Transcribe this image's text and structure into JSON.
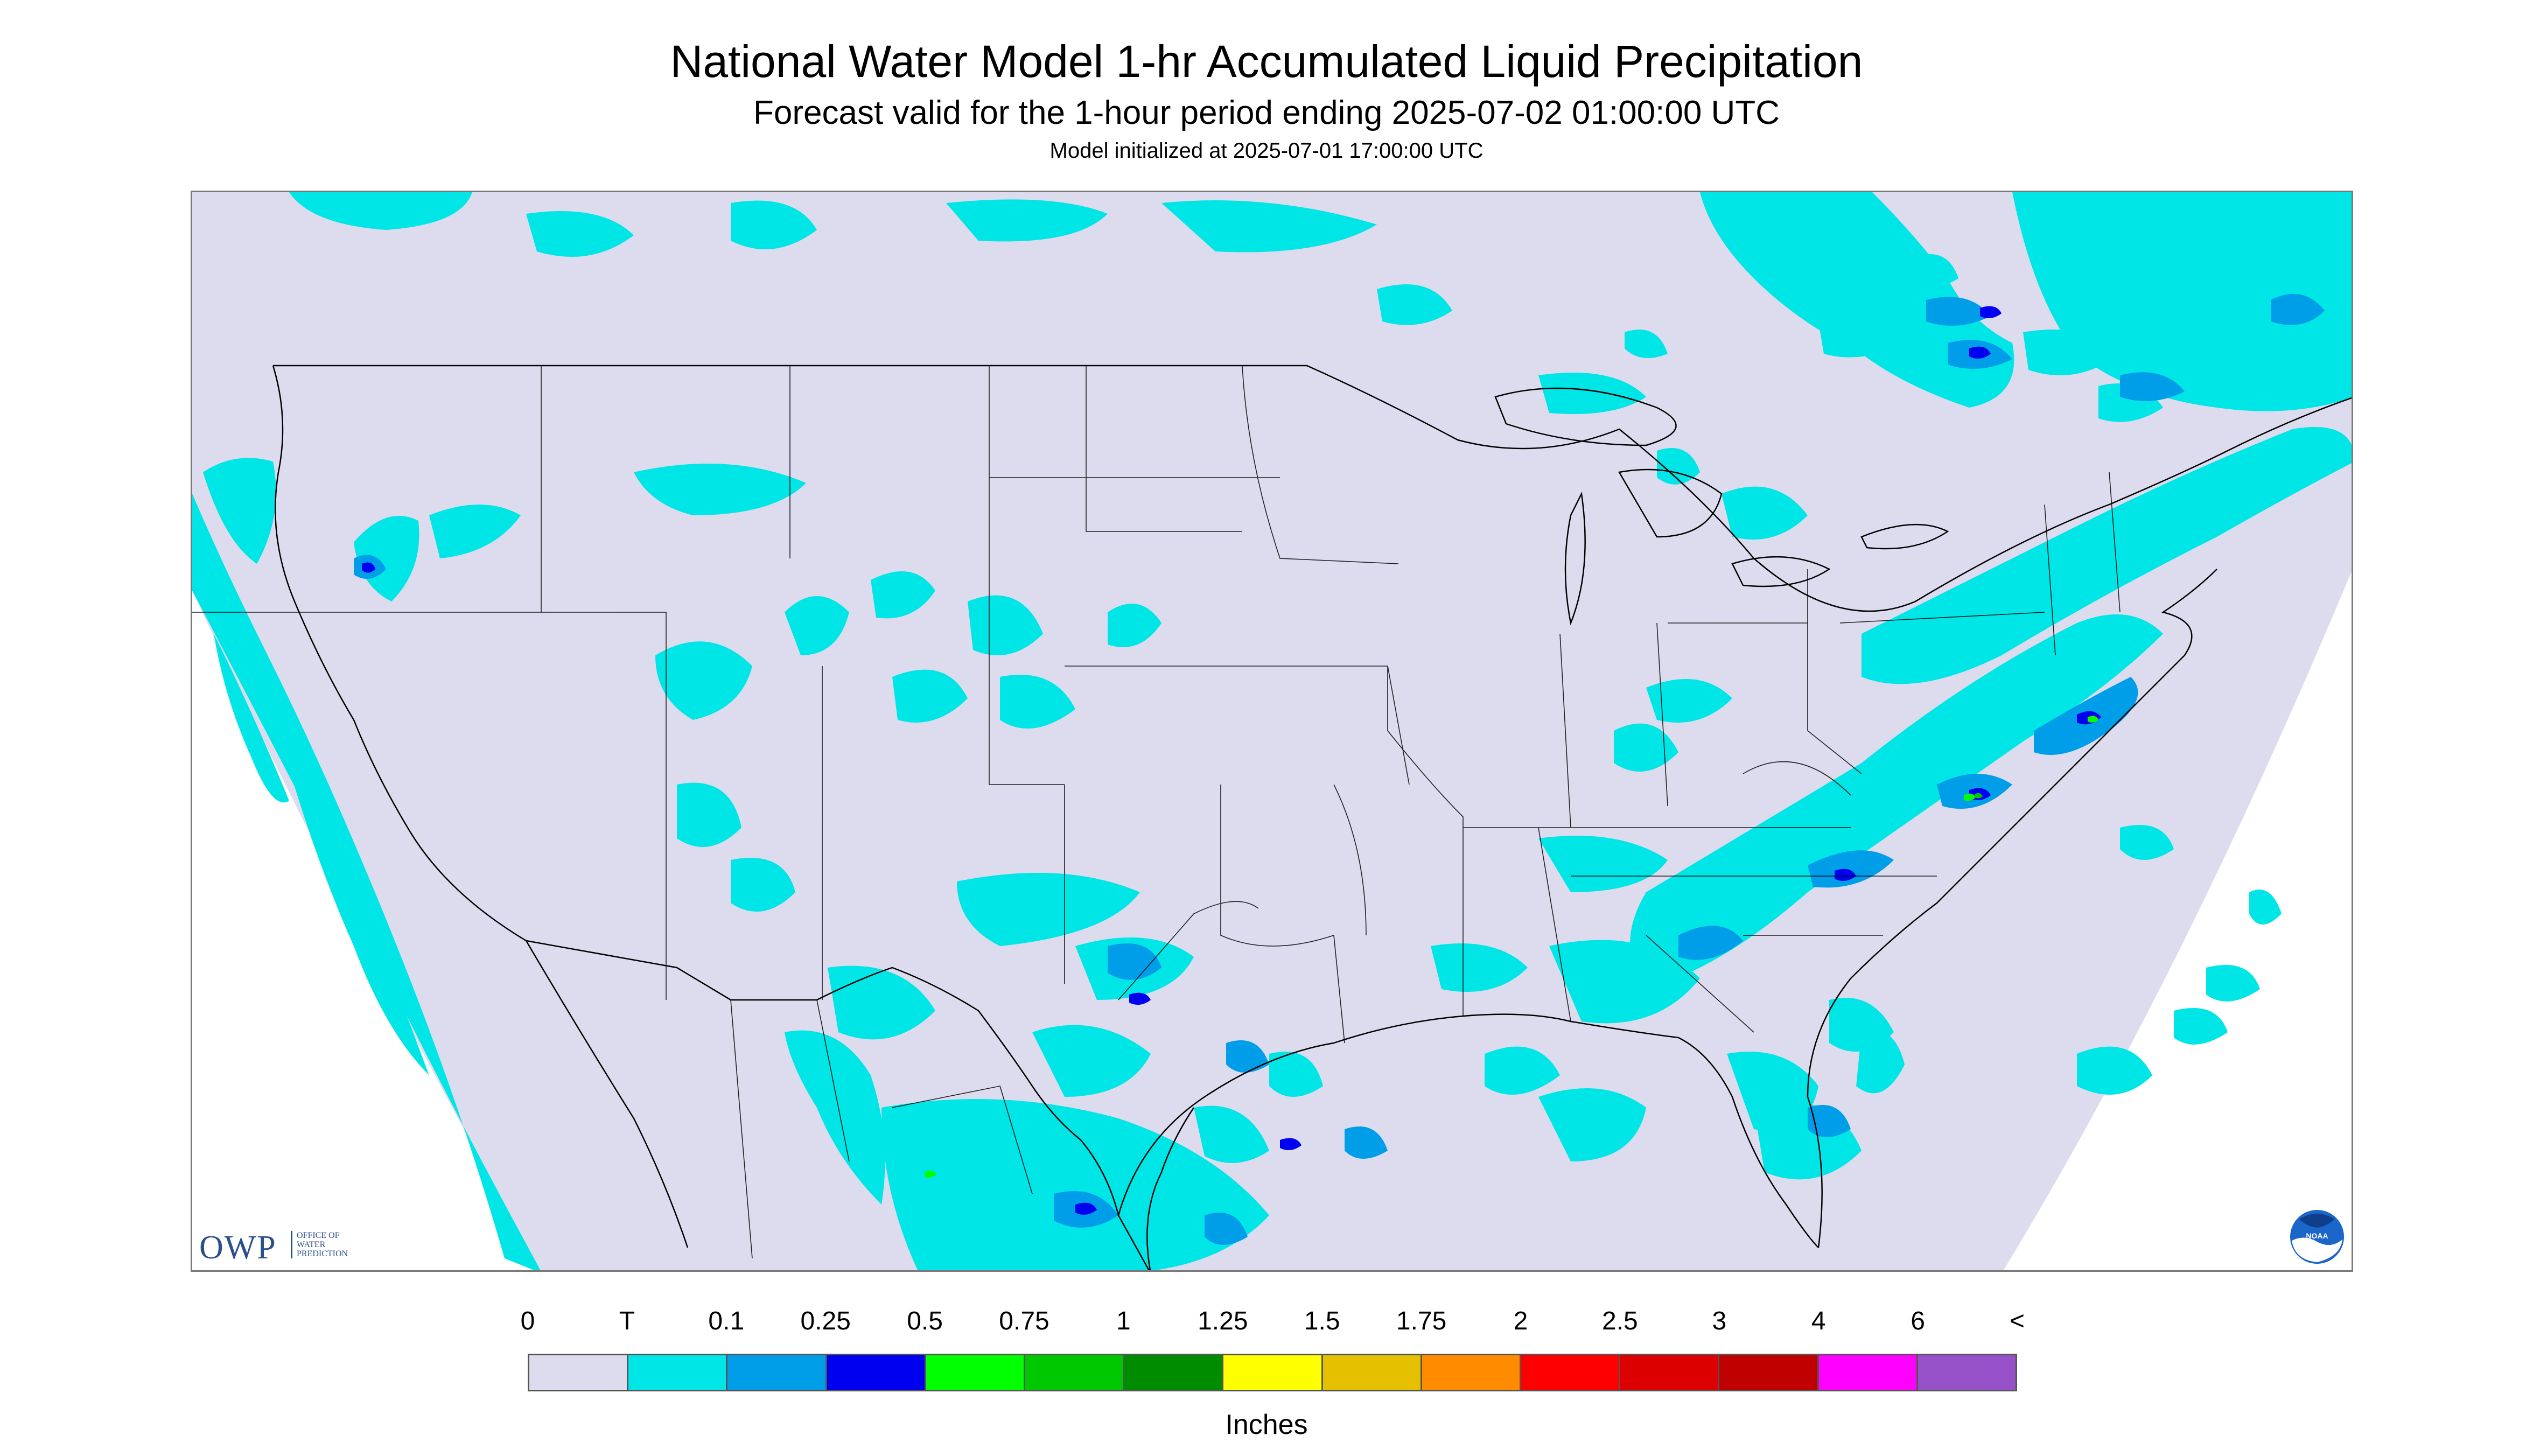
{
  "header": {
    "title": "National Water Model 1-hr Accumulated Liquid Precipitation",
    "subtitle": "Forecast valid for the 1-hour period ending 2025-07-02 01:00:00 UTC",
    "init_line": "Model initialized at 2025-07-01 17:00:00 UTC"
  },
  "map": {
    "background_color": "#dcdcee",
    "outside_color": "#ffffff",
    "border_line_color": "#000000",
    "precip_classes_present": [
      "T",
      "0.1",
      "0.25",
      "0.5",
      "0.75",
      "1"
    ]
  },
  "branding": {
    "owp_logo_text": "OWP",
    "owp_logo_subtext": "OFFICE OF WATER PREDICTION",
    "noaa_logo_icon": "noaa-logo-icon",
    "noaa_logo_text": "NOAA"
  },
  "legend": {
    "tick_labels": [
      "0",
      "T",
      "0.1",
      "0.25",
      "0.5",
      "0.75",
      "1",
      "1.25",
      "1.5",
      "1.75",
      "2",
      "2.5",
      "3",
      "4",
      "6",
      "<"
    ],
    "colors": [
      "#dcdcee",
      "#00e5e5",
      "#009ee8",
      "#0000f0",
      "#00ff00",
      "#00c800",
      "#008c00",
      "#ffff00",
      "#e5c000",
      "#ff8c00",
      "#ff0000",
      "#dc0000",
      "#c00000",
      "#ff00ff",
      "#9650c8"
    ],
    "units_label": "Inches"
  }
}
